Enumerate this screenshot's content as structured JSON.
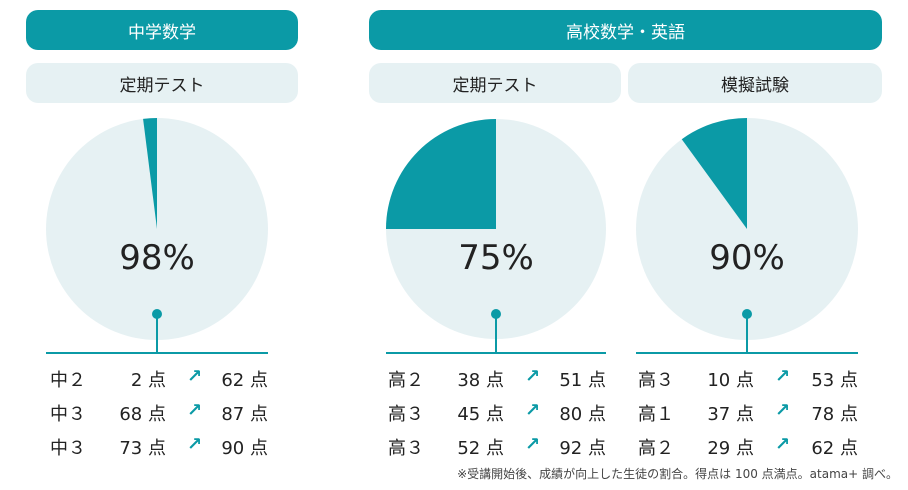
{
  "colors": {
    "accent": "#0b9aa6",
    "light": "#e6f1f3"
  },
  "headers": {
    "junior": "中学数学",
    "senior": "高校数学・英語"
  },
  "chart_data": [
    {
      "type": "pie",
      "subtitle": "定期テスト",
      "percent_label": "98%",
      "values": [
        98,
        2
      ],
      "rows": [
        {
          "grade": "中２",
          "before": "2 点",
          "after": "62 点"
        },
        {
          "grade": "中３",
          "before": "68 点",
          "after": "87 点"
        },
        {
          "grade": "中３",
          "before": "73 点",
          "after": "90 点"
        }
      ]
    },
    {
      "type": "pie",
      "subtitle": "定期テスト",
      "percent_label": "75%",
      "values": [
        75,
        25
      ],
      "rows": [
        {
          "grade": "高２",
          "before": "38 点",
          "after": "51 点"
        },
        {
          "grade": "高３",
          "before": "45 点",
          "after": "80 点"
        },
        {
          "grade": "高３",
          "before": "52 点",
          "after": "92 点"
        }
      ]
    },
    {
      "type": "pie",
      "subtitle": "模擬試験",
      "percent_label": "90%",
      "values": [
        90,
        10
      ],
      "rows": [
        {
          "grade": "高３",
          "before": "10 点",
          "after": "53 点"
        },
        {
          "grade": "高１",
          "before": "37 点",
          "after": "78 点"
        },
        {
          "grade": "高２",
          "before": "29 点",
          "after": "62 点"
        }
      ]
    }
  ],
  "arrow": "↗",
  "footnote": "※受講開始後、成績が向上した生徒の割合。得点は 100 点満点。atama+ 調べ。"
}
